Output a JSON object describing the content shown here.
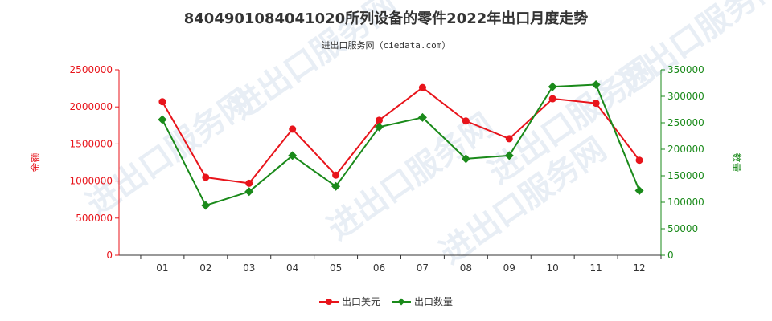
{
  "chart_data": {
    "type": "line",
    "title": "8404901084041020所列设备的零件2022年出口月度走势",
    "subtitle": "进出口服务网（ciedata.com）",
    "categories": [
      "01",
      "02",
      "03",
      "04",
      "05",
      "06",
      "07",
      "08",
      "09",
      "10",
      "11",
      "12"
    ],
    "y_left": {
      "label": "金额",
      "ticks": [
        "0",
        "500000",
        "1000000",
        "1500000",
        "2000000",
        "2500000"
      ],
      "range": [
        0,
        2500000
      ]
    },
    "y_right": {
      "label": "数量",
      "ticks": [
        "0",
        "50000",
        "100000",
        "150000",
        "200000",
        "250000",
        "300000",
        "350000"
      ],
      "range": [
        0,
        350000
      ]
    },
    "series": [
      {
        "name": "出口美元",
        "axis": "left",
        "color": "#e8141b",
        "marker": "circle",
        "values": [
          2070000,
          1050000,
          970000,
          1700000,
          1080000,
          1820000,
          2260000,
          1810000,
          1570000,
          2110000,
          2050000,
          1280000
        ]
      },
      {
        "name": "出口数量",
        "axis": "right",
        "color": "#1a8a1a",
        "marker": "diamond",
        "values": [
          256000,
          94000,
          120000,
          188000,
          130000,
          242000,
          260000,
          182000,
          188000,
          318000,
          322000,
          122000
        ]
      }
    ],
    "legend_position": "bottom-center",
    "grid": false,
    "left_axis_color": "#e8141b",
    "right_axis_color": "#1a8a1a",
    "watermark": "进出口服务网"
  }
}
